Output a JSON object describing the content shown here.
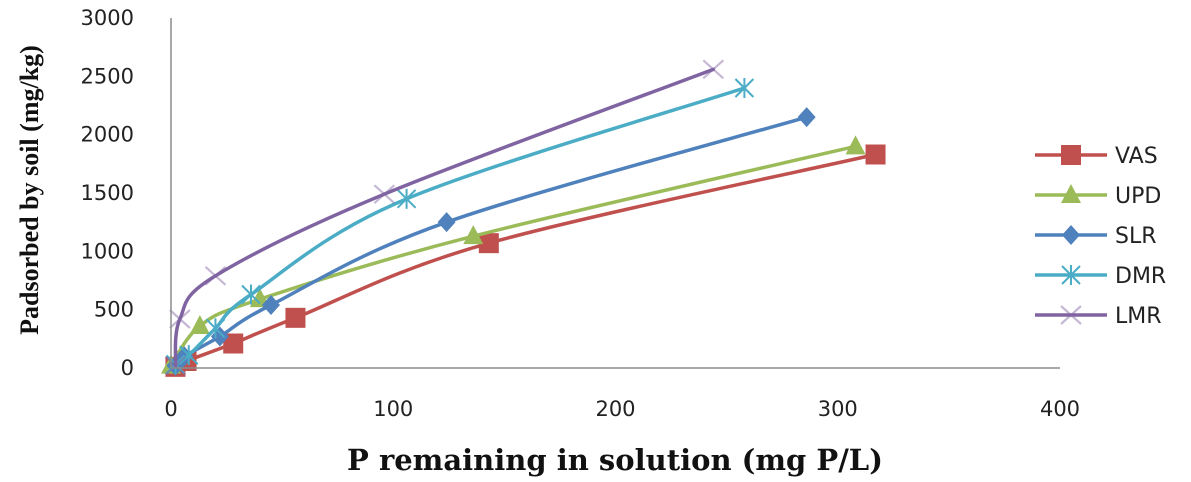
{
  "chart_data": {
    "type": "scatter",
    "xlabel": "P remaining in solution (mg P/L)",
    "ylabel": "Padsorbed by soil (mg/kg)",
    "xlim": [
      0,
      400
    ],
    "ylim": [
      0,
      3000
    ],
    "xticks": [
      "0",
      "100",
      "200",
      "300",
      "400"
    ],
    "yticks": [
      "0",
      "500",
      "1000",
      "1500",
      "2000",
      "2500",
      "3000"
    ],
    "grid": false,
    "legend_position": "right",
    "series": [
      {
        "name": "VAS",
        "color": "#c0504d",
        "marker": "square",
        "points": [
          [
            2,
            10
          ],
          [
            7,
            60
          ],
          [
            28,
            210
          ],
          [
            56,
            430
          ],
          [
            143,
            1070
          ],
          [
            317,
            1830
          ]
        ]
      },
      {
        "name": "UPD",
        "color": "#9bbb59",
        "marker": "triangle",
        "points": [
          [
            0,
            20
          ],
          [
            13,
            360
          ],
          [
            40,
            590
          ],
          [
            136,
            1130
          ],
          [
            308,
            1900
          ]
        ]
      },
      {
        "name": "SLR",
        "color": "#4f81bd",
        "marker": "diamond",
        "points": [
          [
            2,
            20
          ],
          [
            6,
            100
          ],
          [
            22,
            270
          ],
          [
            45,
            540
          ],
          [
            124,
            1250
          ],
          [
            286,
            2150
          ]
        ]
      },
      {
        "name": "DMR",
        "color": "#4bacc6",
        "marker": "star",
        "points": [
          [
            2,
            30
          ],
          [
            8,
            110
          ],
          [
            20,
            340
          ],
          [
            36,
            630
          ],
          [
            106,
            1450
          ],
          [
            258,
            2400
          ]
        ]
      },
      {
        "name": "LMR",
        "color": "#8064a2",
        "marker": "x",
        "points": [
          [
            2,
            20
          ],
          [
            4,
            420
          ],
          [
            20,
            790
          ],
          [
            96,
            1490
          ],
          [
            244,
            2560
          ]
        ]
      }
    ]
  }
}
